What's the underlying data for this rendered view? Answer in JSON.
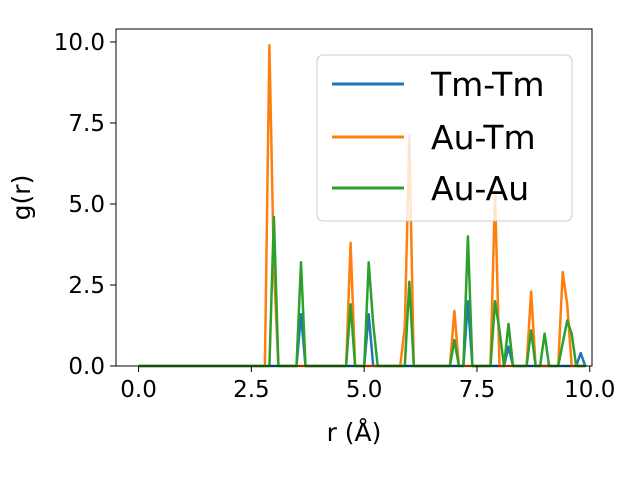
{
  "chart_data": {
    "type": "line",
    "title": "",
    "xlabel": "r (Å)",
    "ylabel": "g(r)",
    "xlim": [
      -0.5,
      10.05
    ],
    "ylim": [
      0,
      10.4
    ],
    "xticks": [
      0.0,
      2.5,
      5.0,
      7.5,
      10.0
    ],
    "xtick_labels": [
      "0.0",
      "2.5",
      "5.0",
      "7.5",
      "10.0"
    ],
    "yticks": [
      0.0,
      2.5,
      5.0,
      7.5,
      10.0
    ],
    "ytick_labels": [
      "0.0",
      "2.5",
      "5.0",
      "7.5",
      "10.0"
    ],
    "grid": false,
    "legend_position": "top-right",
    "series": [
      {
        "name": "Tm-Tm",
        "color": "#1f77b4",
        "x": [
          0,
          3.5,
          3.6,
          3.7,
          5.0,
          5.1,
          5.2,
          7.2,
          7.3,
          7.4,
          8.1,
          8.2,
          8.3,
          9.9,
          9.7,
          9.8,
          9.9
        ],
        "y": [
          0,
          0,
          1.6,
          0,
          0,
          1.6,
          0,
          0,
          2.0,
          0,
          0,
          0.6,
          0,
          0,
          0,
          0.4,
          0
        ]
      },
      {
        "name": "Au-Tm",
        "color": "#ff7f0e",
        "x": [
          0,
          2.8,
          2.9,
          3.0,
          3.1,
          4.6,
          4.7,
          4.8,
          5.8,
          5.9,
          6.0,
          6.1,
          6.9,
          7.0,
          7.1,
          7.8,
          7.9,
          8.0,
          8.6,
          8.7,
          8.8,
          9.3,
          9.4,
          9.5,
          9.6,
          9.9
        ],
        "y": [
          0,
          0,
          9.9,
          3.0,
          0,
          0,
          3.8,
          0,
          0,
          1.2,
          7.1,
          0,
          0,
          1.7,
          0,
          0,
          5.4,
          0,
          0,
          2.3,
          0,
          0,
          2.9,
          1.9,
          0,
          0
        ]
      },
      {
        "name": "Au-Au",
        "color": "#2ca02c",
        "x": [
          0,
          2.8,
          2.9,
          3.0,
          3.1,
          3.5,
          3.6,
          3.7,
          4.6,
          4.7,
          4.8,
          5.0,
          5.1,
          5.2,
          5.3,
          5.8,
          5.9,
          6.0,
          6.1,
          6.9,
          7.0,
          7.1,
          7.2,
          7.3,
          7.4,
          7.8,
          7.9,
          8.0,
          8.1,
          8.2,
          8.3,
          8.5,
          8.6,
          8.7,
          8.8,
          8.9,
          9.0,
          9.1,
          9.3,
          9.4,
          9.5,
          9.6,
          9.7,
          9.9
        ],
        "y": [
          0,
          0,
          0,
          4.6,
          0,
          0,
          3.2,
          0,
          0,
          1.9,
          0,
          0,
          3.2,
          1.3,
          0,
          0,
          0,
          2.6,
          0,
          0,
          0.8,
          0,
          0,
          4.0,
          0,
          0,
          2.0,
          1.1,
          0,
          1.3,
          0,
          0,
          0,
          1.1,
          0,
          0,
          1.0,
          0,
          0,
          0.7,
          1.4,
          1.0,
          0,
          0
        ]
      }
    ]
  }
}
